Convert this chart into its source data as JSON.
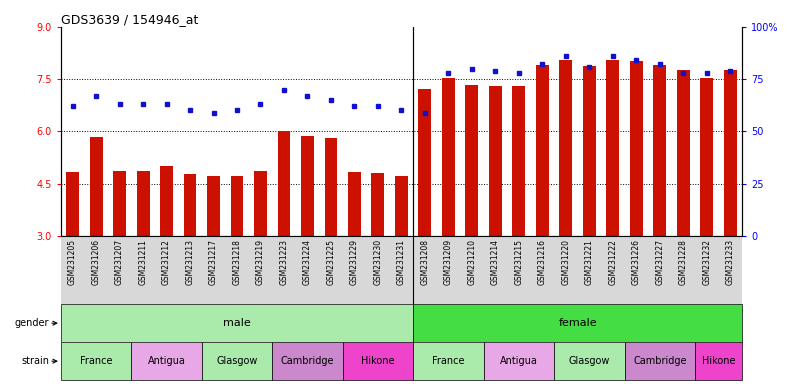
{
  "title": "GDS3639 / 154946_at",
  "samples": [
    "GSM231205",
    "GSM231206",
    "GSM231207",
    "GSM231211",
    "GSM231212",
    "GSM231213",
    "GSM231217",
    "GSM231218",
    "GSM231219",
    "GSM231223",
    "GSM231224",
    "GSM231225",
    "GSM231229",
    "GSM231230",
    "GSM231231",
    "GSM231208",
    "GSM231209",
    "GSM231210",
    "GSM231214",
    "GSM231215",
    "GSM231216",
    "GSM231220",
    "GSM231221",
    "GSM231222",
    "GSM231226",
    "GSM231227",
    "GSM231228",
    "GSM231232",
    "GSM231233"
  ],
  "transformed_count": [
    4.82,
    5.85,
    4.87,
    4.87,
    5.0,
    4.78,
    4.73,
    4.73,
    4.87,
    6.02,
    5.88,
    5.82,
    4.82,
    4.8,
    4.73,
    7.22,
    7.52,
    7.32,
    7.3,
    7.3,
    7.9,
    8.05,
    7.88,
    8.05,
    8.02,
    7.9,
    7.75,
    7.52,
    7.75
  ],
  "percentile_rank": [
    62,
    67,
    63,
    63,
    63,
    60,
    59,
    60,
    63,
    70,
    67,
    65,
    62,
    62,
    60,
    59,
    78,
    80,
    79,
    78,
    82,
    86,
    81,
    86,
    84,
    82,
    78,
    78,
    79
  ],
  "male_count": 15,
  "female_count": 14,
  "strains_male": [
    {
      "name": "France",
      "start": 0,
      "end": 3,
      "color": "#aaeaaa"
    },
    {
      "name": "Antigua",
      "start": 3,
      "end": 6,
      "color": "#e8a8e8"
    },
    {
      "name": "Glasgow",
      "start": 6,
      "end": 9,
      "color": "#aaeaaa"
    },
    {
      "name": "Cambridge",
      "start": 9,
      "end": 12,
      "color": "#cc88cc"
    },
    {
      "name": "Hikone",
      "start": 12,
      "end": 15,
      "color": "#ee44cc"
    }
  ],
  "strains_female": [
    {
      "name": "France",
      "start": 0,
      "end": 3,
      "color": "#aaeaaa"
    },
    {
      "name": "Antigua",
      "start": 3,
      "end": 6,
      "color": "#e8a8e8"
    },
    {
      "name": "Glasgow",
      "start": 6,
      "end": 9,
      "color": "#aaeaaa"
    },
    {
      "name": "Cambridge",
      "start": 9,
      "end": 12,
      "color": "#cc88cc"
    },
    {
      "name": "Hikone",
      "start": 12,
      "end": 14,
      "color": "#ee44cc"
    }
  ],
  "bar_color": "#cc1100",
  "dot_color": "#1111cc",
  "ylim_left": [
    3,
    9
  ],
  "ylim_right": [
    0,
    100
  ],
  "yticks_left": [
    3,
    4.5,
    6,
    7.5,
    9
  ],
  "yticks_right": [
    0,
    25,
    50,
    75,
    100
  ],
  "ytick_labels_right": [
    "0",
    "25",
    "50",
    "75",
    "100%"
  ],
  "gender_color_male": "#aaeaaa",
  "gender_color_female": "#44dd44",
  "grid_lines": [
    4.5,
    6.0,
    7.5
  ],
  "bar_width": 0.55,
  "xticklabel_bg": "#d8d8d8"
}
